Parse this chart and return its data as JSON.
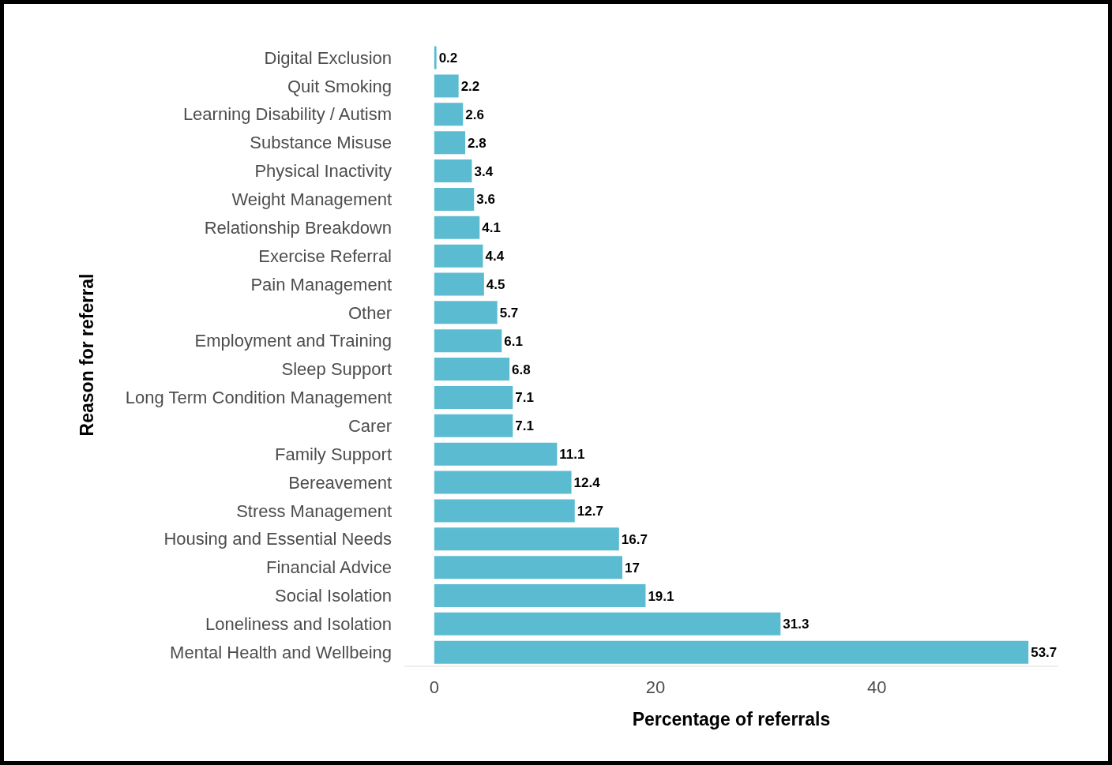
{
  "chart_data": {
    "type": "bar",
    "orientation": "horizontal",
    "categories": [
      "Digital Exclusion",
      "Quit Smoking",
      "Learning Disability / Autism",
      "Substance Misuse",
      "Physical Inactivity",
      "Weight Management",
      "Relationship Breakdown",
      "Exercise Referral",
      "Pain Management",
      "Other",
      "Employment and Training",
      "Sleep Support",
      "Long Term Condition Management",
      "Carer",
      "Family Support",
      "Bereavement",
      "Stress Management",
      "Housing and Essential Needs",
      "Financial Advice",
      "Social Isolation",
      "Loneliness and Isolation",
      "Mental Health and Wellbeing"
    ],
    "values": [
      0.2,
      2.2,
      2.6,
      2.8,
      3.4,
      3.6,
      4.1,
      4.4,
      4.5,
      5.7,
      6.1,
      6.8,
      7.1,
      7.1,
      11.1,
      12.4,
      12.7,
      16.7,
      17,
      19.1,
      31.3,
      53.7
    ],
    "color": "#5bbcd1",
    "xlim": [
      -2.7,
      56.4
    ],
    "xticks": [
      0,
      20,
      40
    ],
    "xlabel": "Percentage of referrals",
    "ylabel": "Reason for referral",
    "data_labels": true
  }
}
